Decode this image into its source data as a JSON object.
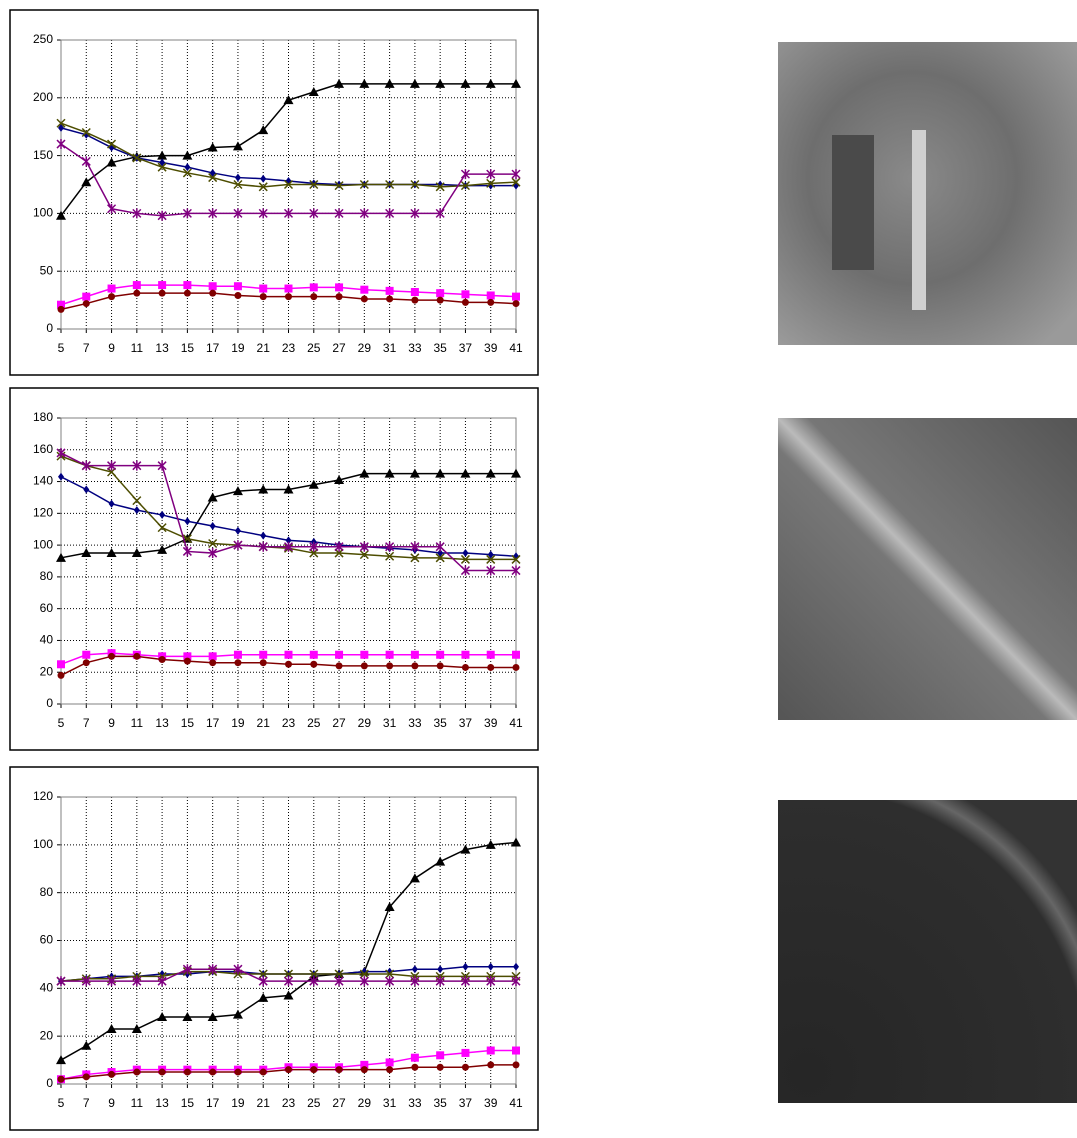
{
  "chart_data": [
    {
      "type": "line",
      "x": [
        5,
        7,
        9,
        11,
        13,
        15,
        17,
        19,
        21,
        23,
        25,
        27,
        29,
        31,
        33,
        35,
        37,
        39,
        41
      ],
      "xlim": [
        5,
        41
      ],
      "xticks": [
        5,
        7,
        9,
        11,
        13,
        15,
        17,
        19,
        21,
        23,
        25,
        27,
        29,
        31,
        33,
        35,
        37,
        39,
        41
      ],
      "ylim": [
        0,
        250
      ],
      "yticks": [
        0,
        50,
        100,
        150,
        200,
        250
      ],
      "grid": true,
      "series": [
        {
          "color": "#000000",
          "marker": "triangle",
          "values": [
            98,
            127,
            144,
            149,
            150,
            150,
            157,
            158,
            172,
            198,
            205,
            212,
            212,
            212,
            212,
            212,
            212,
            212,
            212
          ]
        },
        {
          "color": "#000080",
          "marker": "diamond",
          "values": [
            174,
            168,
            157,
            148,
            144,
            140,
            135,
            131,
            130,
            128,
            126,
            125,
            125,
            125,
            125,
            125,
            124,
            124,
            124
          ]
        },
        {
          "color": "#4d4d00",
          "marker": "x",
          "values": [
            178,
            170,
            160,
            148,
            140,
            135,
            131,
            125,
            123,
            125,
            125,
            124,
            125,
            125,
            125,
            123,
            124,
            126,
            127
          ]
        },
        {
          "color": "#800080",
          "marker": "star",
          "values": [
            160,
            145,
            104,
            100,
            98,
            100,
            100,
            100,
            100,
            100,
            100,
            100,
            100,
            100,
            100,
            100,
            134,
            134,
            134
          ]
        },
        {
          "color": "#ff00ff",
          "marker": "square",
          "values": [
            21,
            28,
            35,
            38,
            38,
            38,
            37,
            37,
            35,
            35,
            36,
            36,
            34,
            33,
            32,
            31,
            30,
            29,
            28
          ]
        },
        {
          "color": "#800000",
          "marker": "circle",
          "values": [
            17,
            22,
            28,
            31,
            31,
            31,
            31,
            29,
            28,
            28,
            28,
            28,
            26,
            26,
            25,
            25,
            23,
            23,
            22
          ]
        }
      ]
    },
    {
      "type": "line",
      "x": [
        5,
        7,
        9,
        11,
        13,
        15,
        17,
        19,
        21,
        23,
        25,
        27,
        29,
        31,
        33,
        35,
        37,
        39,
        41
      ],
      "xlim": [
        5,
        41
      ],
      "xticks": [
        5,
        7,
        9,
        11,
        13,
        15,
        17,
        19,
        21,
        23,
        25,
        27,
        29,
        31,
        33,
        35,
        37,
        39,
        41
      ],
      "ylim": [
        0,
        180
      ],
      "yticks": [
        0,
        20,
        40,
        60,
        80,
        100,
        120,
        140,
        160,
        180
      ],
      "grid": true,
      "series": [
        {
          "color": "#000000",
          "marker": "triangle",
          "values": [
            92,
            95,
            95,
            95,
            97,
            104,
            130,
            134,
            135,
            135,
            138,
            141,
            145,
            145,
            145,
            145,
            145,
            145,
            145
          ]
        },
        {
          "color": "#000080",
          "marker": "diamond",
          "values": [
            143,
            135,
            126,
            122,
            119,
            115,
            112,
            109,
            106,
            103,
            102,
            100,
            99,
            98,
            97,
            95,
            95,
            94,
            93
          ]
        },
        {
          "color": "#4d4d00",
          "marker": "x",
          "values": [
            156,
            150,
            146,
            128,
            111,
            104,
            101,
            100,
            99,
            98,
            95,
            95,
            94,
            93,
            92,
            92,
            91,
            91,
            91
          ]
        },
        {
          "color": "#800080",
          "marker": "star",
          "values": [
            158,
            150,
            150,
            150,
            150,
            96,
            95,
            100,
            99,
            99,
            99,
            99,
            99,
            99,
            99,
            99,
            84,
            84,
            84
          ]
        },
        {
          "color": "#ff00ff",
          "marker": "square",
          "values": [
            25,
            31,
            32,
            31,
            30,
            30,
            30,
            31,
            31,
            31,
            31,
            31,
            31,
            31,
            31,
            31,
            31,
            31,
            31
          ]
        },
        {
          "color": "#800000",
          "marker": "circle",
          "values": [
            18,
            26,
            30,
            30,
            28,
            27,
            26,
            26,
            26,
            25,
            25,
            24,
            24,
            24,
            24,
            24,
            23,
            23,
            23
          ]
        }
      ]
    },
    {
      "type": "line",
      "x": [
        5,
        7,
        9,
        11,
        13,
        15,
        17,
        19,
        21,
        23,
        25,
        27,
        29,
        31,
        33,
        35,
        37,
        39,
        41
      ],
      "xlim": [
        5,
        41
      ],
      "xticks": [
        5,
        7,
        9,
        11,
        13,
        15,
        17,
        19,
        21,
        23,
        25,
        27,
        29,
        31,
        33,
        35,
        37,
        39,
        41
      ],
      "ylim": [
        0,
        120
      ],
      "yticks": [
        0,
        20,
        40,
        60,
        80,
        100,
        120
      ],
      "grid": true,
      "series": [
        {
          "color": "#000000",
          "marker": "triangle",
          "values": [
            10,
            16,
            23,
            23,
            28,
            28,
            28,
            29,
            36,
            37,
            45,
            46,
            47,
            74,
            86,
            93,
            98,
            100,
            101
          ]
        },
        {
          "color": "#000080",
          "marker": "diamond",
          "values": [
            43,
            44,
            45,
            45,
            46,
            46,
            47,
            47,
            46,
            46,
            46,
            46,
            47,
            47,
            48,
            48,
            49,
            49,
            49
          ]
        },
        {
          "color": "#4d4d00",
          "marker": "x",
          "values": [
            43,
            44,
            44,
            45,
            45,
            47,
            47,
            46,
            46,
            46,
            46,
            46,
            46,
            46,
            45,
            45,
            45,
            45,
            45
          ]
        },
        {
          "color": "#800080",
          "marker": "star",
          "values": [
            43,
            43,
            43,
            43,
            43,
            48,
            48,
            48,
            43,
            43,
            43,
            43,
            43,
            43,
            43,
            43,
            43,
            43,
            43
          ]
        },
        {
          "color": "#ff00ff",
          "marker": "square",
          "values": [
            2,
            4,
            5,
            6,
            6,
            6,
            6,
            6,
            6,
            7,
            7,
            7,
            8,
            9,
            11,
            12,
            13,
            14,
            14
          ]
        },
        {
          "color": "#800000",
          "marker": "circle",
          "values": [
            2,
            3,
            4,
            5,
            5,
            5,
            5,
            5,
            5,
            6,
            6,
            6,
            6,
            6,
            7,
            7,
            7,
            8,
            8
          ]
        }
      ]
    }
  ]
}
